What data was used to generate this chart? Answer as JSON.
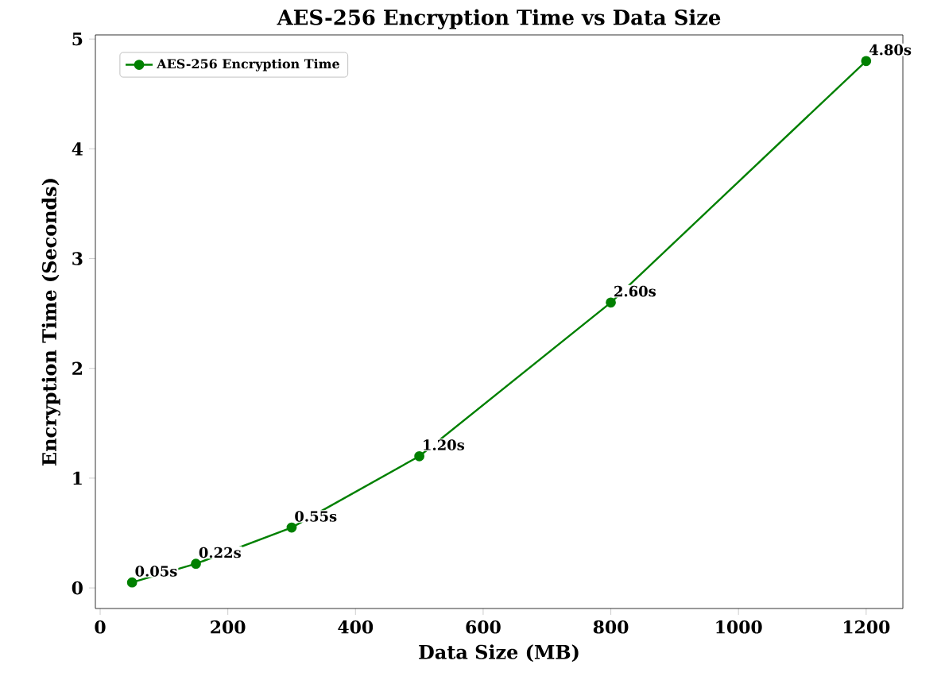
{
  "chart_data": {
    "type": "line",
    "title": "AES-256 Encryption Time vs Data Size",
    "xlabel": "Data Size (MB)",
    "ylabel": "Encryption Time (Seconds)",
    "x": [
      50,
      150,
      300,
      500,
      800,
      1200
    ],
    "series": [
      {
        "name": "AES-256 Encryption Time",
        "color": "#008000",
        "values": [
          0.05,
          0.22,
          0.55,
          1.2,
          2.6,
          4.8
        ],
        "value_labels": [
          "0.05s",
          "0.22s",
          "0.55s",
          "1.20s",
          "2.60s",
          "4.80s"
        ]
      }
    ],
    "xlim": [
      -7.5,
      1257.5
    ],
    "ylim": [
      -0.1875,
      5.0375
    ],
    "xticks": [
      0,
      200,
      400,
      600,
      800,
      1000,
      1200
    ],
    "yticks": [
      0,
      1,
      2,
      3,
      4,
      5
    ],
    "marker": "circle",
    "legend": "top left",
    "grid": false
  }
}
